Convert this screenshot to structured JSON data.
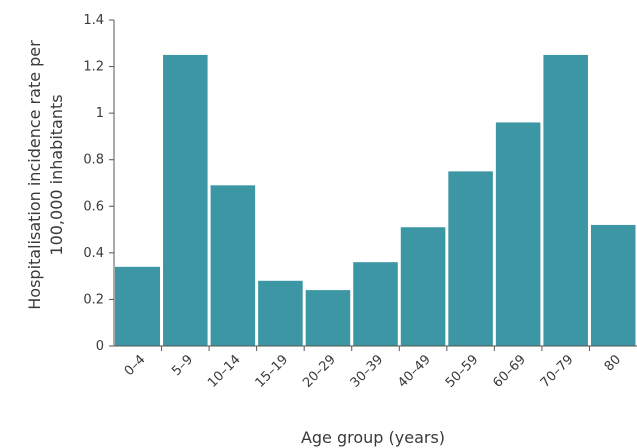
{
  "chart_data": {
    "type": "bar",
    "title": "",
    "xlabel": "Age group (years)",
    "ylabel_lines": [
      "Hospitalisation  incidence rate per",
      "100,000 inhabitants"
    ],
    "categories": [
      "0–4",
      "5–9",
      "10–14",
      "15–19",
      "20–29",
      "30–39",
      "40–49",
      "50–59",
      "60–69",
      "70–79",
      "80"
    ],
    "values": [
      0.34,
      1.25,
      0.69,
      0.28,
      0.24,
      0.36,
      0.51,
      0.75,
      0.96,
      1.25,
      0.52
    ],
    "ylim": [
      0,
      1.4
    ],
    "yticks": [
      0,
      0.2,
      0.4,
      0.6,
      0.8,
      1,
      1.2,
      1.4
    ],
    "ytick_labels": [
      "0",
      "0.2",
      "0.4",
      "0.6",
      "0.8",
      "1",
      "1.2",
      "1.4"
    ],
    "grid": false,
    "bar_color": "#3c96a4",
    "axis_color": "#555555"
  }
}
